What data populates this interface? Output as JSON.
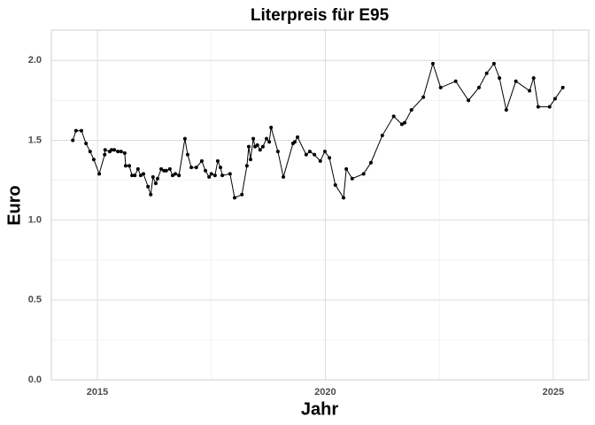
{
  "chart_data": {
    "type": "line",
    "title": "Literpreis für E95",
    "x_label": "Jahr",
    "y_label": "Euro",
    "x": [
      2014.46,
      2014.53,
      2014.65,
      2014.75,
      2014.84,
      2014.92,
      2015.04,
      2015.16,
      2015.17,
      2015.27,
      2015.31,
      2015.37,
      2015.45,
      2015.52,
      2015.6,
      2015.62,
      2015.7,
      2015.76,
      2015.82,
      2015.89,
      2015.95,
      2016.01,
      2016.11,
      2016.17,
      2016.22,
      2016.28,
      2016.32,
      2016.4,
      2016.46,
      2016.51,
      2016.59,
      2016.65,
      2016.71,
      2016.79,
      2016.92,
      2016.98,
      2017.06,
      2017.17,
      2017.29,
      2017.37,
      2017.45,
      2017.5,
      2017.58,
      2017.64,
      2017.7,
      2017.74,
      2017.91,
      2018.01,
      2018.17,
      2018.28,
      2018.32,
      2018.36,
      2018.42,
      2018.46,
      2018.51,
      2018.57,
      2018.63,
      2018.71,
      2018.77,
      2018.81,
      2018.96,
      2019.08,
      2019.29,
      2019.33,
      2019.39,
      2019.58,
      2019.66,
      2019.76,
      2019.89,
      2019.99,
      2020.09,
      2020.22,
      2020.4,
      2020.46,
      2020.59,
      2020.84,
      2021.0,
      2021.25,
      2021.5,
      2021.68,
      2021.74,
      2021.89,
      2022.15,
      2022.36,
      2022.53,
      2022.86,
      2023.14,
      2023.37,
      2023.54,
      2023.7,
      2023.82,
      2023.97,
      2024.18,
      2024.48,
      2024.57,
      2024.67,
      2024.92,
      2025.04,
      2025.21
    ],
    "values": [
      1.5,
      1.56,
      1.56,
      1.48,
      1.43,
      1.38,
      1.29,
      1.41,
      1.44,
      1.43,
      1.44,
      1.44,
      1.43,
      1.43,
      1.42,
      1.34,
      1.34,
      1.28,
      1.28,
      1.32,
      1.28,
      1.29,
      1.21,
      1.16,
      1.27,
      1.23,
      1.26,
      1.32,
      1.31,
      1.31,
      1.32,
      1.28,
      1.29,
      1.28,
      1.51,
      1.41,
      1.33,
      1.33,
      1.37,
      1.31,
      1.27,
      1.29,
      1.28,
      1.37,
      1.33,
      1.28,
      1.29,
      1.14,
      1.16,
      1.34,
      1.46,
      1.38,
      1.51,
      1.46,
      1.47,
      1.44,
      1.46,
      1.51,
      1.49,
      1.58,
      1.43,
      1.27,
      1.48,
      1.49,
      1.52,
      1.41,
      1.43,
      1.41,
      1.37,
      1.43,
      1.39,
      1.22,
      1.14,
      1.32,
      1.26,
      1.29,
      1.36,
      1.53,
      1.65,
      1.6,
      1.61,
      1.69,
      1.77,
      1.98,
      1.83,
      1.87,
      1.75,
      1.83,
      1.92,
      1.98,
      1.89,
      1.69,
      1.87,
      1.81,
      1.89,
      1.71,
      1.71,
      1.76,
      1.83
    ],
    "color": "#000000",
    "xlim": [
      2013.99,
      2025.78
    ],
    "xticks": [
      2015,
      2020,
      2025
    ],
    "ylim": [
      0,
      2.19
    ],
    "yticks": [
      {
        "value": 0,
        "label": "0.0"
      },
      0.5,
      {
        "value": 1,
        "label": "1.0"
      },
      1.5,
      {
        "value": 2,
        "label": "2.0"
      }
    ],
    "grid": true
  }
}
